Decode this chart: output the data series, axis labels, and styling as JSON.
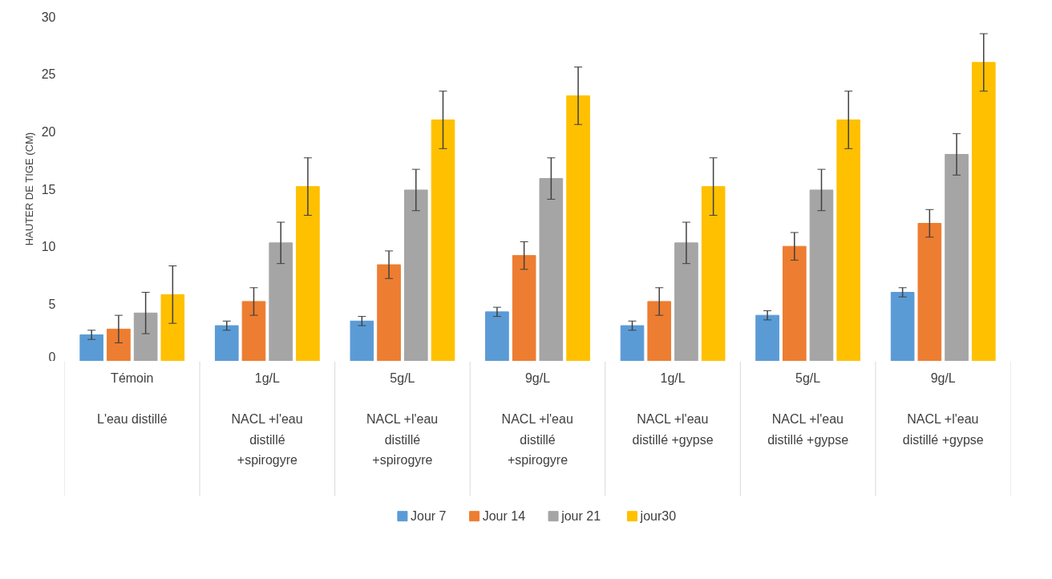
{
  "chart_data": {
    "type": "bar",
    "ylabel": "HAUTER DE TIGE (CM)",
    "categories": [
      "Témoin\nL'eau distillé",
      "1g/L\nNACL +l'eau distillé +spirogyre",
      "5g/L\nNACL +l'eau distillé +spirogyre",
      "9g/L\nNACL +l'eau distillé +spirogyre",
      "1g/L\nNACL +l'eau distillé +gypse",
      "5g/L\nNACL +l'eau distillé +gypse",
      "9g/L\nNACL +l'eau distillé +gypse"
    ],
    "series": [
      {
        "name": "Jour 7",
        "color": "#5b9bd5",
        "values": [
          2.3,
          3.1,
          3.5,
          4.3,
          3.1,
          4.0,
          6.0
        ],
        "errors": [
          0.4,
          0.4,
          0.4,
          0.4,
          0.4,
          0.4,
          0.4
        ]
      },
      {
        "name": "Jour 14",
        "color": "#ed7d31",
        "values": [
          2.8,
          5.2,
          8.4,
          9.2,
          5.2,
          10.0,
          12.0
        ],
        "errors": [
          1.2,
          1.2,
          1.2,
          1.2,
          1.2,
          1.2,
          1.2
        ]
      },
      {
        "name": "jour 21",
        "color": "#a5a5a5",
        "values": [
          4.2,
          10.3,
          14.9,
          15.9,
          10.3,
          14.9,
          18.0
        ],
        "errors": [
          1.8,
          1.8,
          1.8,
          1.8,
          1.8,
          1.8,
          1.8
        ]
      },
      {
        "name": "jour30",
        "color": "#ffc000",
        "values": [
          5.8,
          15.2,
          21.0,
          23.1,
          15.2,
          21.0,
          26.0
        ],
        "errors": [
          2.5,
          2.5,
          2.5,
          2.5,
          2.5,
          2.5,
          2.5
        ]
      }
    ],
    "ylim": [
      0,
      30
    ],
    "yticks": [
      0,
      5,
      10,
      15,
      20,
      25,
      30
    ],
    "grid": false,
    "legend": "bottom"
  }
}
